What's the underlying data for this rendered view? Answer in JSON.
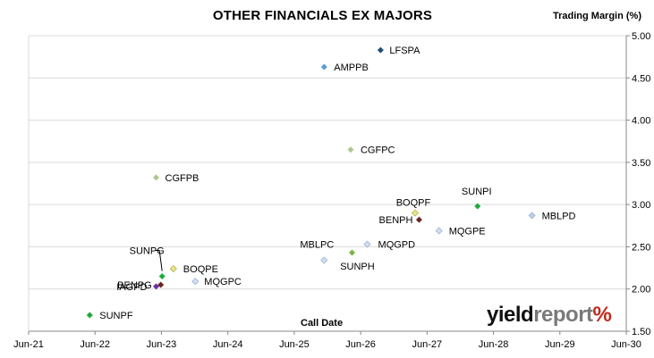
{
  "chart_data": {
    "type": "scatter",
    "title": "OTHER FINANCIALS EX MAJORS",
    "ylabel": "Trading Margin (%)",
    "xlabel": "Call Date",
    "y_axis_side": "right",
    "ylim": [
      1.5,
      5.0
    ],
    "y_ticks": [
      "1.50",
      "2.00",
      "2.50",
      "3.00",
      "3.50",
      "4.00",
      "4.50",
      "5.00"
    ],
    "x_ticks": [
      "Jun-21",
      "Jun-22",
      "Jun-23",
      "Jun-24",
      "Jun-25",
      "Jun-26",
      "Jun-27",
      "Jun-28",
      "Jun-29",
      "Jun-30"
    ],
    "grid": "horizontal",
    "legend": "none",
    "points": [
      {
        "label": "LFSPA",
        "x": "Jun-26 +2m",
        "x_years": 5.3,
        "y": 4.83,
        "color": "#1f4e79"
      },
      {
        "label": "AMPPB",
        "x": "Jun-25 +5m",
        "x_years": 4.45,
        "y": 4.63,
        "color": "#5b9bd5"
      },
      {
        "label": "CGFPC",
        "x": "Jun-25 +10m",
        "x_years": 4.85,
        "y": 3.65,
        "color": "#a9c98d"
      },
      {
        "label": "CGFPB",
        "x": "Jun-22 +11m",
        "x_years": 1.92,
        "y": 3.32,
        "color": "#a9c98d"
      },
      {
        "label": "BOQPF",
        "x": "Jun-26 +10m",
        "x_years": 5.82,
        "y": 2.9,
        "color": "#e6e68a"
      },
      {
        "label": "BENPH",
        "x": "Jun-26 +11m",
        "x_years": 5.88,
        "y": 2.82,
        "color": "#6b2424"
      },
      {
        "label": "SUNPI",
        "x": "Jun-27 +9m",
        "x_years": 6.76,
        "y": 2.98,
        "color": "#1faa3a"
      },
      {
        "label": "MBLPD",
        "x": "Jun-28 +7m",
        "x_years": 7.58,
        "y": 2.87,
        "color": "#bcd0e8"
      },
      {
        "label": "MQGPE",
        "x": "Jun-27 +2m",
        "x_years": 6.18,
        "y": 2.69,
        "color": "#d3dfee"
      },
      {
        "label": "MQGPD",
        "x": "Jun-26 +1m",
        "x_years": 5.1,
        "y": 2.53,
        "color": "#d3dfee"
      },
      {
        "label": "MBLPC",
        "x": "Jun-25 +5m",
        "x_years": 4.45,
        "y": 2.34,
        "color": "#d3dfee"
      },
      {
        "label": "SUNPH",
        "x": "Jun-25 +10m",
        "x_years": 4.87,
        "y": 2.43,
        "color": "#7ab648"
      },
      {
        "label": "BOQPE",
        "x": "Jun-23 +2m",
        "x_years": 2.18,
        "y": 2.24,
        "color": "#e6e68a"
      },
      {
        "label": "SUNPG",
        "x": "Jun-23",
        "x_years": 2.01,
        "y": 2.15,
        "color": "#1faa3a"
      },
      {
        "label": "MQGPC",
        "x": "Jun-23 +6m",
        "x_years": 2.51,
        "y": 2.09,
        "color": "#d3dfee"
      },
      {
        "label": "BENPG",
        "x": "Jun-23",
        "x_years": 1.99,
        "y": 2.05,
        "color": "#6b2424"
      },
      {
        "label": "IAGPD",
        "x": "Jun-22 +11m",
        "x_years": 1.92,
        "y": 2.03,
        "color": "#7030a0"
      },
      {
        "label": "SUNPF",
        "x": "Jun-21 +11m",
        "x_years": 0.92,
        "y": 1.69,
        "color": "#1faa3a"
      }
    ]
  },
  "logo": {
    "part1": "yield",
    "part2": "report",
    "part3": "%"
  }
}
